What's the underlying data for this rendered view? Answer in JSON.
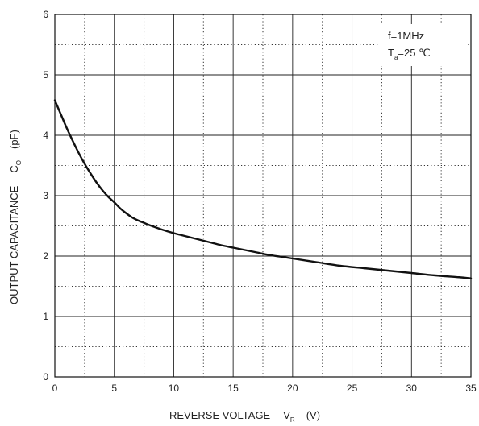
{
  "chart_data": {
    "type": "line",
    "xlabel": "REVERSE VOLTAGE",
    "xlabel_symbol": "V",
    "xlabel_subscript": "R",
    "xlabel_unit": "(V)",
    "ylabel": "OUTPUT CAPACITANCE",
    "ylabel_symbol": "C",
    "ylabel_subscript": "O",
    "ylabel_unit": "(pF)",
    "xlim": [
      0,
      35
    ],
    "ylim": [
      0,
      6
    ],
    "x_ticks": [
      0,
      5,
      10,
      15,
      20,
      25,
      30,
      35
    ],
    "y_ticks": [
      0,
      1,
      2,
      3,
      4,
      5,
      6
    ],
    "x_tick_labels": [
      "0",
      "5",
      "10",
      "15",
      "20",
      "25",
      "30",
      "35"
    ],
    "y_tick_labels": [
      "0",
      "1",
      "2",
      "3",
      "4",
      "5",
      "6"
    ],
    "grid": "solid major lines every 5 V and 1 pF, dotted minor lines every 2.5 V and 0.5 pF",
    "annotation": {
      "line1": "f=1MHz",
      "line2_prefix": "T",
      "line2_subscript": "a",
      "line2_suffix": "=25 ℃"
    },
    "series": [
      {
        "x": [
          0,
          0.5,
          1,
          1.5,
          2,
          2.5,
          3,
          3.5,
          4,
          4.5,
          5,
          5.5,
          6,
          6.5,
          7,
          7.5,
          8,
          9,
          10,
          11,
          12,
          13,
          14,
          15,
          16,
          17,
          18,
          19,
          20,
          22,
          24,
          26,
          28,
          30,
          32,
          34,
          35
        ],
        "y": [
          4.58,
          4.35,
          4.12,
          3.91,
          3.71,
          3.53,
          3.37,
          3.22,
          3.09,
          2.98,
          2.89,
          2.79,
          2.71,
          2.64,
          2.59,
          2.55,
          2.51,
          2.44,
          2.38,
          2.33,
          2.28,
          2.23,
          2.18,
          2.14,
          2.1,
          2.06,
          2.02,
          1.99,
          1.96,
          1.9,
          1.84,
          1.8,
          1.76,
          1.72,
          1.68,
          1.65,
          1.63
        ]
      }
    ]
  }
}
